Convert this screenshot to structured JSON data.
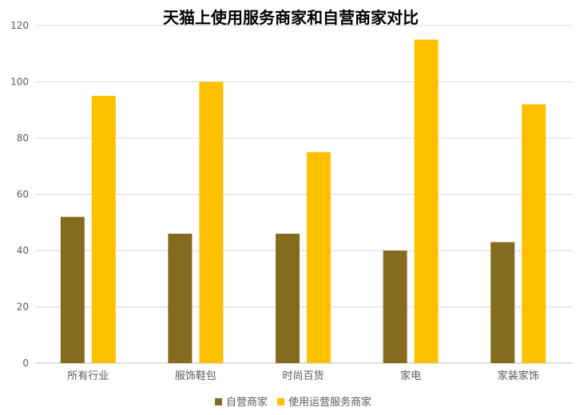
{
  "chart_data": {
    "type": "bar",
    "title": "天猫上使用服务商家和自营商家对比",
    "categories": [
      "所有行业",
      "服饰鞋包",
      "时尚百货",
      "家电",
      "家装家饰"
    ],
    "series": [
      {
        "name": "自营商家",
        "color": "#846b1f",
        "values": [
          52,
          46,
          46,
          40,
          43
        ]
      },
      {
        "name": "使用运营服务商家",
        "color": "#ffc000",
        "values": [
          95,
          100,
          75,
          115,
          92
        ]
      }
    ],
    "ylim": [
      0,
      120
    ],
    "yticks": [
      0,
      20,
      40,
      60,
      80,
      100,
      120
    ],
    "grid": true,
    "legend": "bottom"
  }
}
